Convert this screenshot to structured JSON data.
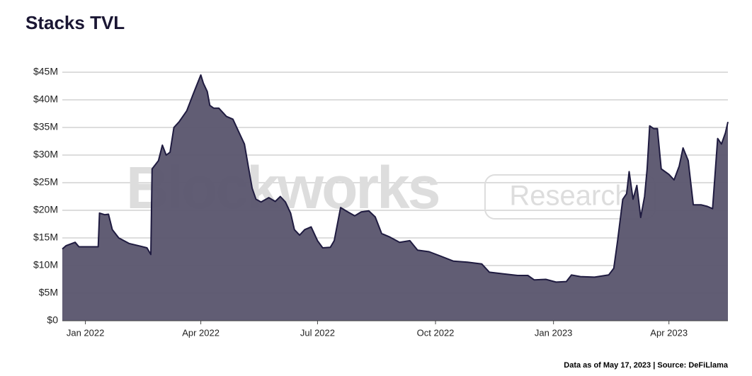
{
  "chart_data": {
    "type": "area",
    "title": "Stacks TVL",
    "watermark": [
      "Blockworks",
      "Research"
    ],
    "source": "Data as of May 17, 2023 | Source: DeFiLlama",
    "x": [
      "2021-12-14",
      "2021-12-17",
      "2021-12-24",
      "2021-12-27",
      "2022-01-11",
      "2022-01-12",
      "2022-01-16",
      "2022-01-19",
      "2022-01-22",
      "2022-01-27",
      "2022-02-04",
      "2022-02-13",
      "2022-02-18",
      "2022-02-21",
      "2022-02-22",
      "2022-02-27",
      "2022-03-02",
      "2022-03-05",
      "2022-03-08",
      "2022-03-11",
      "2022-03-15",
      "2022-03-21",
      "2022-03-26",
      "2022-04-01",
      "2022-04-03",
      "2022-04-06",
      "2022-04-08",
      "2022-04-11",
      "2022-04-15",
      "2022-04-21",
      "2022-04-26",
      "2022-05-01",
      "2022-05-05",
      "2022-05-08",
      "2022-05-11",
      "2022-05-14",
      "2022-05-18",
      "2022-05-24",
      "2022-05-29",
      "2022-06-02",
      "2022-06-06",
      "2022-06-10",
      "2022-06-13",
      "2022-06-17",
      "2022-06-21",
      "2022-06-26",
      "2022-07-01",
      "2022-07-05",
      "2022-07-11",
      "2022-07-14",
      "2022-07-19",
      "2022-07-24",
      "2022-07-30",
      "2022-08-04",
      "2022-08-10",
      "2022-08-15",
      "2022-08-20",
      "2022-08-26",
      "2022-09-03",
      "2022-09-11",
      "2022-09-17",
      "2022-09-26",
      "2022-10-04",
      "2022-10-15",
      "2022-10-26",
      "2022-11-06",
      "2022-11-12",
      "2022-11-23",
      "2022-12-04",
      "2022-12-12",
      "2022-12-17",
      "2022-12-26",
      "2023-01-03",
      "2023-01-11",
      "2023-01-15",
      "2023-01-22",
      "2023-02-02",
      "2023-02-13",
      "2023-02-17",
      "2023-02-20",
      "2023-02-24",
      "2023-02-27",
      "2023-03-01",
      "2023-03-04",
      "2023-03-07",
      "2023-03-10",
      "2023-03-13",
      "2023-03-15",
      "2023-03-17",
      "2023-03-20",
      "2023-03-23",
      "2023-03-26",
      "2023-04-01",
      "2023-04-05",
      "2023-04-09",
      "2023-04-12",
      "2023-04-16",
      "2023-04-20",
      "2023-04-26",
      "2023-05-01",
      "2023-05-05",
      "2023-05-09",
      "2023-05-12",
      "2023-05-15",
      "2023-05-17"
    ],
    "values": [
      13,
      13.6,
      14.2,
      13.4,
      13.4,
      19.5,
      19.2,
      19.3,
      16.5,
      15,
      14,
      13.5,
      13.2,
      12,
      27.5,
      29,
      31.8,
      30,
      30.5,
      35,
      36,
      38,
      41,
      44.5,
      43,
      41.5,
      39,
      38.5,
      38.5,
      37,
      36.5,
      34,
      32,
      28,
      24,
      22,
      21.5,
      22.3,
      21.6,
      22.5,
      21.5,
      19.5,
      16.5,
      15.5,
      16.5,
      17,
      14.5,
      13.2,
      13.3,
      14.5,
      20.5,
      19.8,
      19,
      19.7,
      19.9,
      18.8,
      15.8,
      15.2,
      14.2,
      14.5,
      12.8,
      12.5,
      11.8,
      10.8,
      10.6,
      10.3,
      8.8,
      8.5,
      8.2,
      8.2,
      7.4,
      7.5,
      7,
      7.1,
      8.3,
      8,
      7.9,
      8.3,
      9.5,
      14.5,
      22,
      23,
      27,
      22,
      24.5,
      18.7,
      22.5,
      27.5,
      35.3,
      34.8,
      34.8,
      27.5,
      26.5,
      25.5,
      28,
      31.3,
      29,
      21,
      21,
      20.7,
      20.3,
      33,
      32,
      34,
      36
    ],
    "color": "#5c5870",
    "line_color": "#1f1b40",
    "xlim": [
      "2021-12-14",
      "2023-05-17"
    ],
    "xticks": [
      {
        "value": "2022-01-01",
        "label": "Jan 2022"
      },
      {
        "value": "2022-04-01",
        "label": "Apr 2022"
      },
      {
        "value": "2022-07-01",
        "label": "Jul 2022"
      },
      {
        "value": "2022-10-01",
        "label": "Oct 2022"
      },
      {
        "value": "2023-01-01",
        "label": "Jan 2023"
      },
      {
        "value": "2023-04-01",
        "label": "Apr 2023"
      }
    ],
    "ylim": [
      0,
      45
    ],
    "yticks": [
      {
        "value": 0,
        "label": "$0"
      },
      {
        "value": 5,
        "label": "$5M"
      },
      {
        "value": 10,
        "label": "$10M"
      },
      {
        "value": 15,
        "label": "$15M"
      },
      {
        "value": 20,
        "label": "$20M"
      },
      {
        "value": 25,
        "label": "$25M"
      },
      {
        "value": 30,
        "label": "$30M"
      },
      {
        "value": 35,
        "label": "$35M"
      },
      {
        "value": 40,
        "label": "$40M"
      },
      {
        "value": 45,
        "label": "$45M"
      }
    ],
    "grid": true
  }
}
